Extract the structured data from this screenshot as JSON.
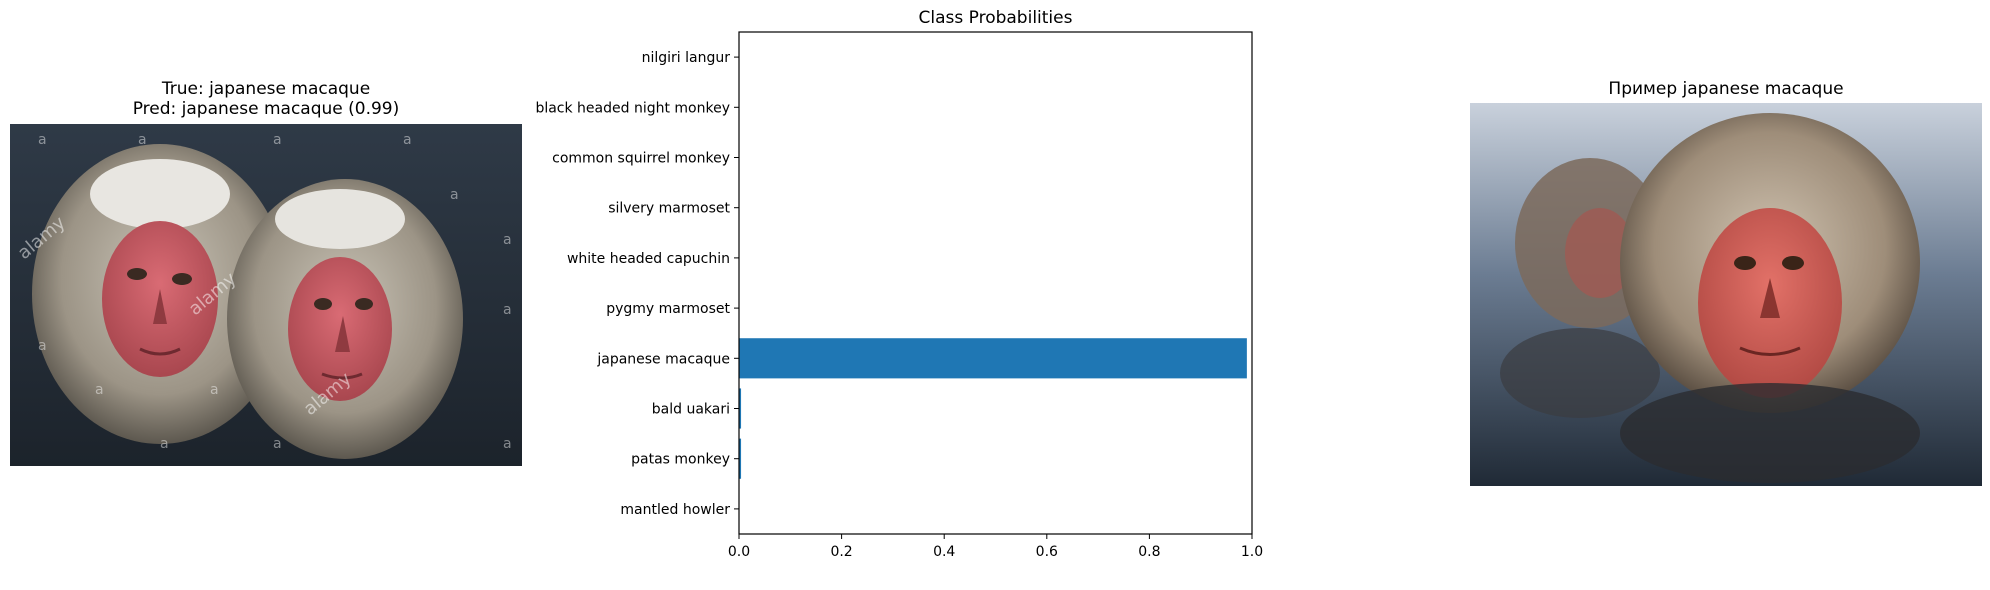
{
  "left_panel": {
    "true_line": "True: japanese macaque",
    "pred_line": "Pred: japanese macaque (0.99)",
    "watermark_text": "alamy",
    "watermark_letter": "a"
  },
  "right_panel": {
    "title": "Пример japanese macaque"
  },
  "chart_data": {
    "type": "bar",
    "orientation": "horizontal",
    "title": "Class Probabilities",
    "xlabel": "",
    "ylabel": "",
    "xlim": [
      0,
      1.0
    ],
    "xticks": [
      "0.0",
      "0.2",
      "0.4",
      "0.6",
      "0.8",
      "1.0"
    ],
    "categories": [
      "nilgiri langur",
      "black headed night monkey",
      "common squirrel monkey",
      "silvery marmoset",
      "white headed capuchin",
      "pygmy marmoset",
      "japanese macaque",
      "bald uakari",
      "patas monkey",
      "mantled howler"
    ],
    "values": [
      0.0,
      0.0,
      0.0,
      0.0,
      0.0,
      0.0,
      0.99,
      0.004,
      0.004,
      0.0
    ],
    "bar_color": "#1f77b4",
    "grid": false,
    "legend": "none"
  }
}
